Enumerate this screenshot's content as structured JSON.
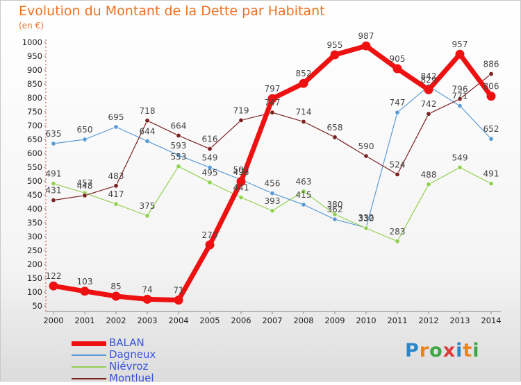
{
  "title": "Evolution du Montant de la Dette par Habitant",
  "unit": "(en €)",
  "logo": {
    "letters": [
      "P",
      "r",
      "o",
      "x",
      "i",
      "t",
      "i"
    ],
    "colors": [
      "#2a86c9",
      "#e8831e",
      "#3aa842",
      "#e23a3a",
      "#2a86c9",
      "#e8831e",
      "#3aa842"
    ]
  },
  "chart_data": {
    "type": "line",
    "title": "Evolution du Montant de la Dette par Habitant",
    "ylabel": "(en €)",
    "xlabel": "",
    "x": [
      "2000",
      "2001",
      "2002",
      "2003",
      "2004",
      "2005",
      "2006",
      "2007",
      "2008",
      "2009",
      "2010",
      "2011",
      "2012",
      "2013",
      "2014"
    ],
    "ylim": [
      50,
      1000
    ],
    "yticks": [
      50,
      100,
      150,
      200,
      250,
      300,
      350,
      400,
      450,
      500,
      550,
      600,
      650,
      700,
      750,
      800,
      850,
      900,
      950,
      1000
    ],
    "grid": false,
    "legend": "bottom-left",
    "series": [
      {
        "name": "BALAN",
        "color": "#ee1111",
        "highlight": true,
        "values": [
          122,
          103,
          85,
          74,
          71,
          270,
          498,
          797,
          852,
          955,
          987,
          905,
          829,
          957,
          806
        ]
      },
      {
        "name": "Dagneux",
        "color": "#5b9bd5",
        "highlight": false,
        "values": [
          635,
          650,
          695,
          644,
          593,
          549,
          505,
          456,
          415,
          362,
          332,
          747,
          842,
          771,
          652
        ]
      },
      {
        "name": "Niévroz",
        "color": "#92d050",
        "highlight": false,
        "values": [
          491,
          457,
          417,
          375,
          553,
          495,
          441,
          393,
          463,
          380,
          330,
          283,
          488,
          549,
          491
        ]
      },
      {
        "name": "Montluel",
        "color": "#7b2020",
        "highlight": false,
        "values": [
          431,
          448,
          483,
          718,
          664,
          616,
          719,
          747,
          714,
          658,
          590,
          524,
          742,
          796,
          886
        ]
      }
    ]
  }
}
